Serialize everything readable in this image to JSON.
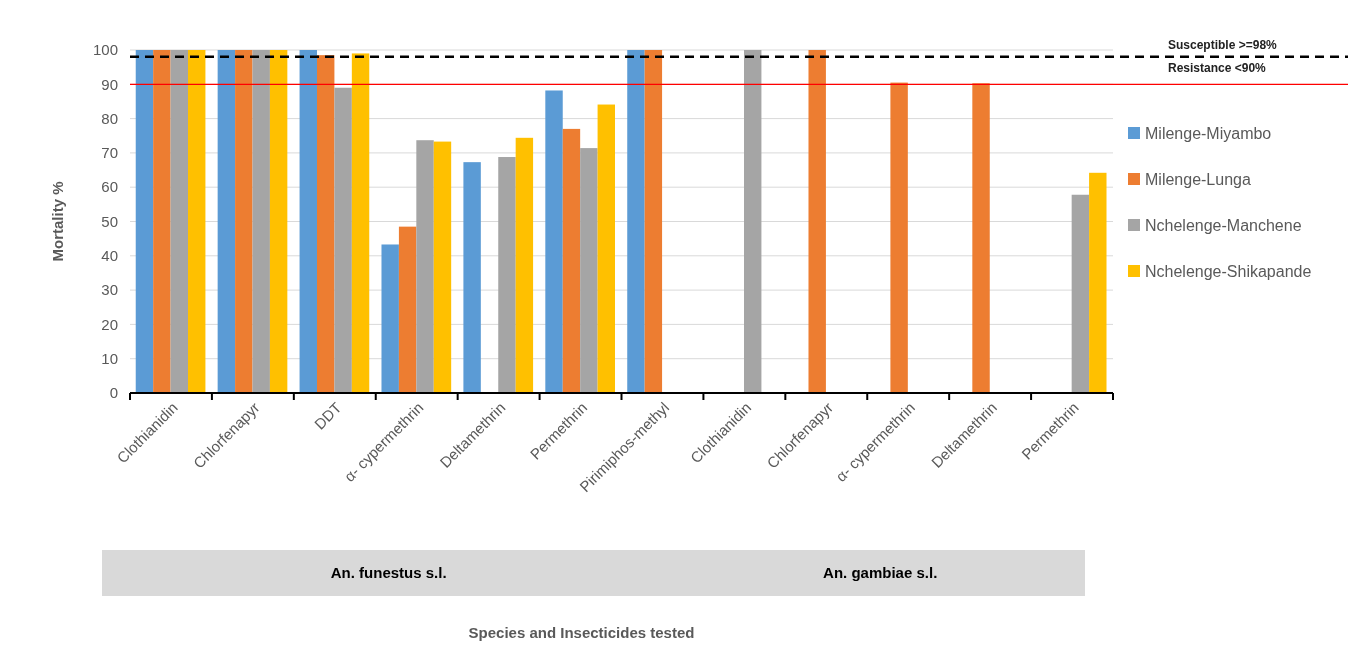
{
  "chart_data": {
    "type": "bar",
    "ylabel": "Mortality %",
    "categories": [
      "Clothianidin",
      "Chlorfenapyr",
      "DDT",
      "α- cypermethrin",
      "Deltamethrin",
      "Permethrin",
      "Pirimiphos-methyl",
      "Clothianidin",
      "Chlorfenapyr",
      "α- cypermethrin",
      "Deltamethrin",
      "Permethrin"
    ],
    "series": [
      {
        "name": "Milenge-Miyambo",
        "color": "#5b9bd5",
        "values": [
          100,
          100,
          100,
          43.3,
          67.3,
          88.2,
          100,
          null,
          null,
          null,
          null,
          null
        ]
      },
      {
        "name": "Milenge-Lunga",
        "color": "#ed7d31",
        "values": [
          100,
          100,
          98.5,
          48.5,
          null,
          77,
          100,
          null,
          100,
          90.5,
          90.3,
          null
        ]
      },
      {
        "name": "Nchelenge-Manchene",
        "color": "#a5a5a5",
        "values": [
          100,
          100,
          89,
          73.7,
          68.8,
          71.4,
          null,
          100,
          null,
          null,
          null,
          57.8
        ]
      },
      {
        "name": "Nchelenge-Shikapande",
        "color": "#ffc000",
        "values": [
          100,
          100,
          99,
          73.3,
          74.4,
          84.1,
          null,
          null,
          null,
          null,
          null,
          64.2
        ]
      }
    ],
    "ylim": [
      0,
      100
    ],
    "yticks": [
      0,
      10,
      20,
      30,
      40,
      50,
      60,
      70,
      80,
      90,
      100
    ],
    "grid": "y",
    "legend": "right",
    "ref_lines": [
      {
        "axis": "y",
        "value": 98,
        "label": "Susceptible >=98%",
        "color": "#000000",
        "line_style": "dashed"
      },
      {
        "axis": "y",
        "value": 90,
        "label": "Resistance <90%",
        "color": "#ff0000",
        "line_style": "solid"
      }
    ],
    "annotations": [
      "An. funestus s.l.",
      "An. gambiae s.l.",
      "Species and Insecticides tested"
    ]
  }
}
